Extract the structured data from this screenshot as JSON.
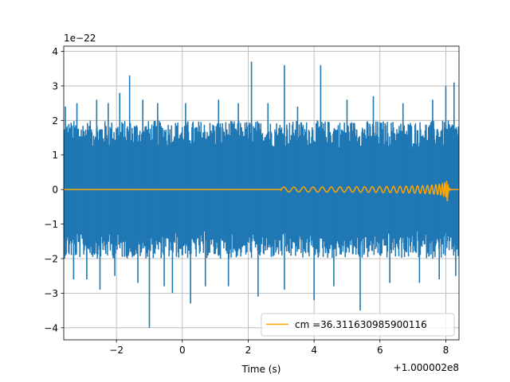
{
  "chart_data": {
    "type": "line",
    "xlabel": "Time (s)",
    "ylabel": "",
    "x_offset_label": "+1.000002e8",
    "y_scale_label": "1e−22",
    "xlim": [
      -3.6,
      8.4
    ],
    "ylim": [
      -4.35,
      4.15
    ],
    "x_ticks": [
      -2,
      0,
      2,
      4,
      6,
      8
    ],
    "x_tick_labels": [
      "−2",
      "0",
      "2",
      "4",
      "6",
      "8"
    ],
    "y_ticks": [
      -4,
      -3,
      -2,
      -1,
      0,
      1,
      2,
      3,
      4
    ],
    "y_tick_labels": [
      "−4",
      "−3",
      "−2",
      "−1",
      "0",
      "1",
      "2",
      "3",
      "4"
    ],
    "grid": true,
    "legend_position": "lower-right",
    "series": [
      {
        "name": "",
        "color": "#1f77b4",
        "kind": "noise",
        "typical_envelope": [
          -2.0,
          2.0
        ],
        "spikes": [
          {
            "x": -3.55,
            "y": 2.4
          },
          {
            "x": -3.3,
            "y": -2.6
          },
          {
            "x": -3.2,
            "y": 2.5
          },
          {
            "x": -2.9,
            "y": -2.6
          },
          {
            "x": -2.6,
            "y": 2.6
          },
          {
            "x": -2.5,
            "y": -2.9
          },
          {
            "x": -2.25,
            "y": 2.5
          },
          {
            "x": -2.05,
            "y": -2.5
          },
          {
            "x": -1.9,
            "y": 2.8
          },
          {
            "x": -1.6,
            "y": 3.3
          },
          {
            "x": -1.35,
            "y": -2.7
          },
          {
            "x": -1.2,
            "y": 2.6
          },
          {
            "x": -1.0,
            "y": -4.0
          },
          {
            "x": -0.75,
            "y": 2.5
          },
          {
            "x": -0.55,
            "y": -2.8
          },
          {
            "x": -0.3,
            "y": -3.0
          },
          {
            "x": 0.1,
            "y": 2.5
          },
          {
            "x": 0.25,
            "y": -3.3
          },
          {
            "x": 0.7,
            "y": -2.8
          },
          {
            "x": 1.1,
            "y": 2.6
          },
          {
            "x": 1.4,
            "y": -2.8
          },
          {
            "x": 1.7,
            "y": 2.5
          },
          {
            "x": 2.1,
            "y": 3.7
          },
          {
            "x": 2.3,
            "y": -3.1
          },
          {
            "x": 2.6,
            "y": 2.5
          },
          {
            "x": 3.1,
            "y": -2.9
          },
          {
            "x": 3.1,
            "y": 3.6
          },
          {
            "x": 3.5,
            "y": 2.4
          },
          {
            "x": 4.0,
            "y": -3.2
          },
          {
            "x": 4.2,
            "y": 3.6
          },
          {
            "x": 4.6,
            "y": -2.8
          },
          {
            "x": 5.0,
            "y": 2.6
          },
          {
            "x": 5.4,
            "y": -3.5
          },
          {
            "x": 5.8,
            "y": 2.7
          },
          {
            "x": 6.3,
            "y": -2.7
          },
          {
            "x": 6.7,
            "y": 2.5
          },
          {
            "x": 7.2,
            "y": -2.7
          },
          {
            "x": 7.6,
            "y": 2.6
          },
          {
            "x": 7.8,
            "y": -2.6
          },
          {
            "x": 8.0,
            "y": 3.0
          },
          {
            "x": 8.25,
            "y": 3.1
          },
          {
            "x": 8.3,
            "y": -2.5
          }
        ]
      },
      {
        "name": "cm =36.311630985900116",
        "color": "#ffa500",
        "kind": "chirp",
        "start_x": 3.0,
        "merger_x": 8.05,
        "peak_amplitude": 0.35,
        "ringdown_end_x": 8.2
      }
    ]
  }
}
